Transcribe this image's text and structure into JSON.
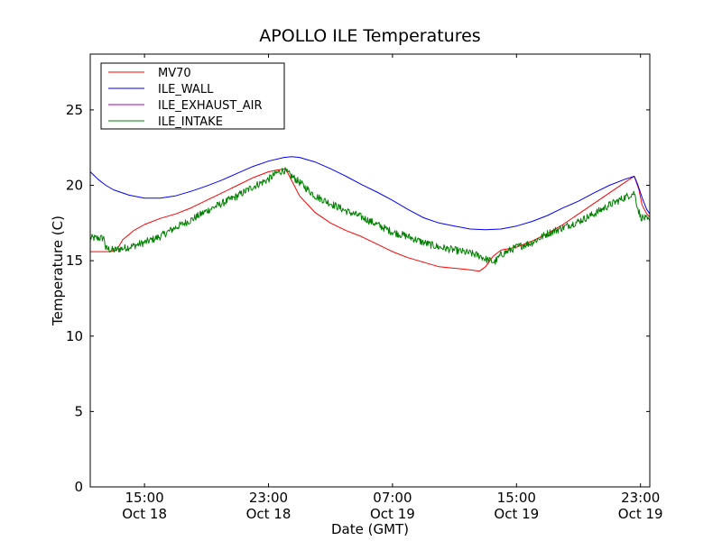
{
  "chart_data": {
    "type": "line",
    "title": "APOLLO ILE Temperatures",
    "xlabel": "Date (GMT)",
    "ylabel": "Temperature (C)",
    "xlim": [
      11.5,
      47.6
    ],
    "ylim": [
      0,
      28.7
    ],
    "x_unit": "hours since Oct 18 00:00 GMT",
    "x_ticks": [
      {
        "x": 15,
        "line1": "15:00",
        "line2": "Oct 18"
      },
      {
        "x": 23,
        "line1": "23:00",
        "line2": "Oct 18"
      },
      {
        "x": 31,
        "line1": "07:00",
        "line2": "Oct 19"
      },
      {
        "x": 39,
        "line1": "15:00",
        "line2": "Oct 19"
      },
      {
        "x": 47,
        "line1": "23:00",
        "line2": "Oct 19"
      }
    ],
    "y_ticks": [
      0,
      5,
      10,
      15,
      20,
      25
    ],
    "legend_position": "top-left",
    "series": [
      {
        "name": "MV70",
        "color": "#ff0000",
        "noise": 0,
        "x": [
          11.5,
          12.3,
          12.8,
          13.2,
          13.6,
          14.3,
          15.0,
          16.0,
          17.0,
          18.0,
          19.0,
          20.0,
          21.0,
          22.0,
          23.0,
          23.5,
          24.1,
          24.5,
          25.0,
          26.0,
          27.0,
          28.0,
          29.0,
          30.0,
          31.0,
          32.0,
          33.0,
          34.0,
          35.0,
          36.0,
          36.6,
          37.0,
          37.5,
          38.0,
          39.0,
          40.0,
          41.0,
          42.0,
          43.0,
          44.0,
          45.0,
          46.0,
          46.6,
          46.9,
          47.1,
          47.4,
          47.6
        ],
        "y": [
          15.6,
          15.6,
          15.6,
          15.7,
          16.4,
          17.0,
          17.4,
          17.8,
          18.1,
          18.5,
          19.0,
          19.5,
          20.0,
          20.5,
          20.9,
          21.0,
          21.1,
          20.3,
          19.3,
          18.2,
          17.5,
          17.0,
          16.6,
          16.1,
          15.6,
          15.2,
          14.9,
          14.6,
          14.5,
          14.4,
          14.3,
          14.6,
          15.3,
          15.7,
          15.9,
          16.3,
          16.8,
          17.4,
          18.1,
          18.8,
          19.5,
          20.2,
          20.6,
          19.7,
          18.7,
          18.1,
          17.9
        ]
      },
      {
        "name": "ILE_WALL",
        "color": "#0000ff",
        "noise": 0,
        "x": [
          11.5,
          12.0,
          12.5,
          13.0,
          14.0,
          15.0,
          16.0,
          17.0,
          18.0,
          19.0,
          20.0,
          21.0,
          22.0,
          23.0,
          24.0,
          24.5,
          25.0,
          26.0,
          27.0,
          28.0,
          29.0,
          30.0,
          31.0,
          32.0,
          33.0,
          34.0,
          35.0,
          36.0,
          37.0,
          38.0,
          39.0,
          40.0,
          41.0,
          42.0,
          43.0,
          44.0,
          45.0,
          46.0,
          46.6,
          46.8,
          47.1,
          47.4,
          47.6
        ],
        "y": [
          20.9,
          20.4,
          20.0,
          19.7,
          19.35,
          19.15,
          19.15,
          19.3,
          19.6,
          19.95,
          20.35,
          20.8,
          21.25,
          21.6,
          21.85,
          21.9,
          21.85,
          21.55,
          21.1,
          20.6,
          20.05,
          19.55,
          19.0,
          18.4,
          17.85,
          17.5,
          17.3,
          17.1,
          17.05,
          17.1,
          17.3,
          17.6,
          18.0,
          18.5,
          18.95,
          19.5,
          20.0,
          20.4,
          20.6,
          20.1,
          19.2,
          18.4,
          18.1
        ]
      },
      {
        "name": "ILE_EXHAUST_AIR",
        "color": "#a000c0",
        "noise": 0,
        "x": [],
        "y": []
      },
      {
        "name": "ILE_INTAKE",
        "color": "#008000",
        "noise": 0.25,
        "x": [
          11.5,
          12.4,
          12.5,
          13.0,
          13.5,
          14.0,
          15.0,
          16.0,
          17.0,
          18.0,
          19.0,
          20.0,
          21.0,
          22.0,
          23.0,
          23.5,
          24.0,
          24.5,
          25.0,
          26.0,
          27.0,
          28.0,
          29.0,
          30.0,
          31.0,
          32.0,
          33.0,
          34.0,
          35.0,
          36.0,
          36.7,
          37.0,
          37.6,
          38.0,
          39.0,
          40.0,
          41.0,
          42.0,
          43.0,
          44.0,
          45.0,
          46.0,
          46.6,
          46.8,
          47.0,
          47.3,
          47.6
        ],
        "y": [
          16.5,
          16.5,
          15.8,
          15.7,
          15.8,
          15.9,
          16.2,
          16.6,
          17.2,
          17.7,
          18.3,
          18.8,
          19.3,
          19.9,
          20.4,
          20.8,
          21.0,
          20.6,
          20.2,
          19.3,
          18.8,
          18.3,
          17.9,
          17.4,
          16.9,
          16.6,
          16.2,
          15.9,
          15.7,
          15.5,
          15.3,
          15.1,
          14.9,
          15.4,
          15.9,
          16.2,
          16.8,
          17.2,
          17.6,
          18.1,
          18.7,
          19.2,
          19.5,
          18.6,
          17.9,
          17.8,
          17.6
        ]
      }
    ]
  }
}
